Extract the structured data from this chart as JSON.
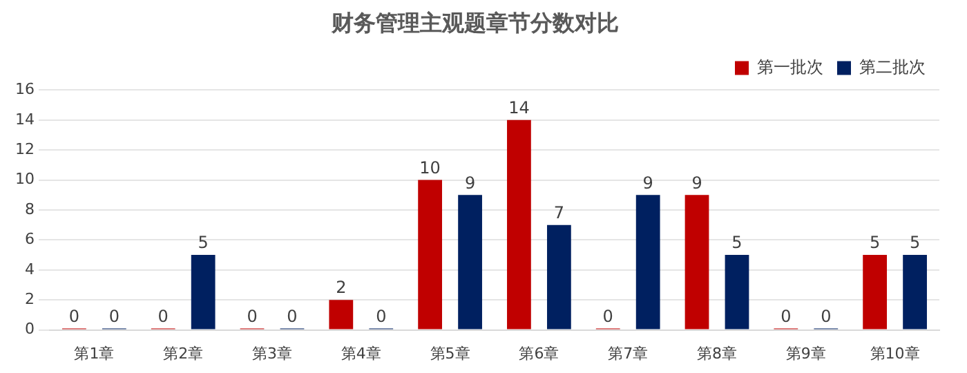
{
  "chart_data": {
    "type": "bar",
    "title": "财务管理主观题章节分数对比",
    "categories": [
      "第1章",
      "第2章",
      "第3章",
      "第4章",
      "第5章",
      "第6章",
      "第7章",
      "第8章",
      "第9章",
      "第10章"
    ],
    "series": [
      {
        "name": "第一批次",
        "color": "#c00000",
        "values": [
          0,
          0,
          0,
          2,
          10,
          14,
          0,
          9,
          0,
          5
        ]
      },
      {
        "name": "第二批次",
        "color": "#002060",
        "values": [
          0,
          5,
          0,
          0,
          9,
          7,
          9,
          5,
          0,
          5
        ]
      }
    ],
    "ylim": [
      0,
      16
    ],
    "yticks": [
      0,
      2,
      4,
      6,
      8,
      10,
      12,
      14,
      16
    ],
    "grid": "y",
    "legend": "top right",
    "data_labels": true
  }
}
